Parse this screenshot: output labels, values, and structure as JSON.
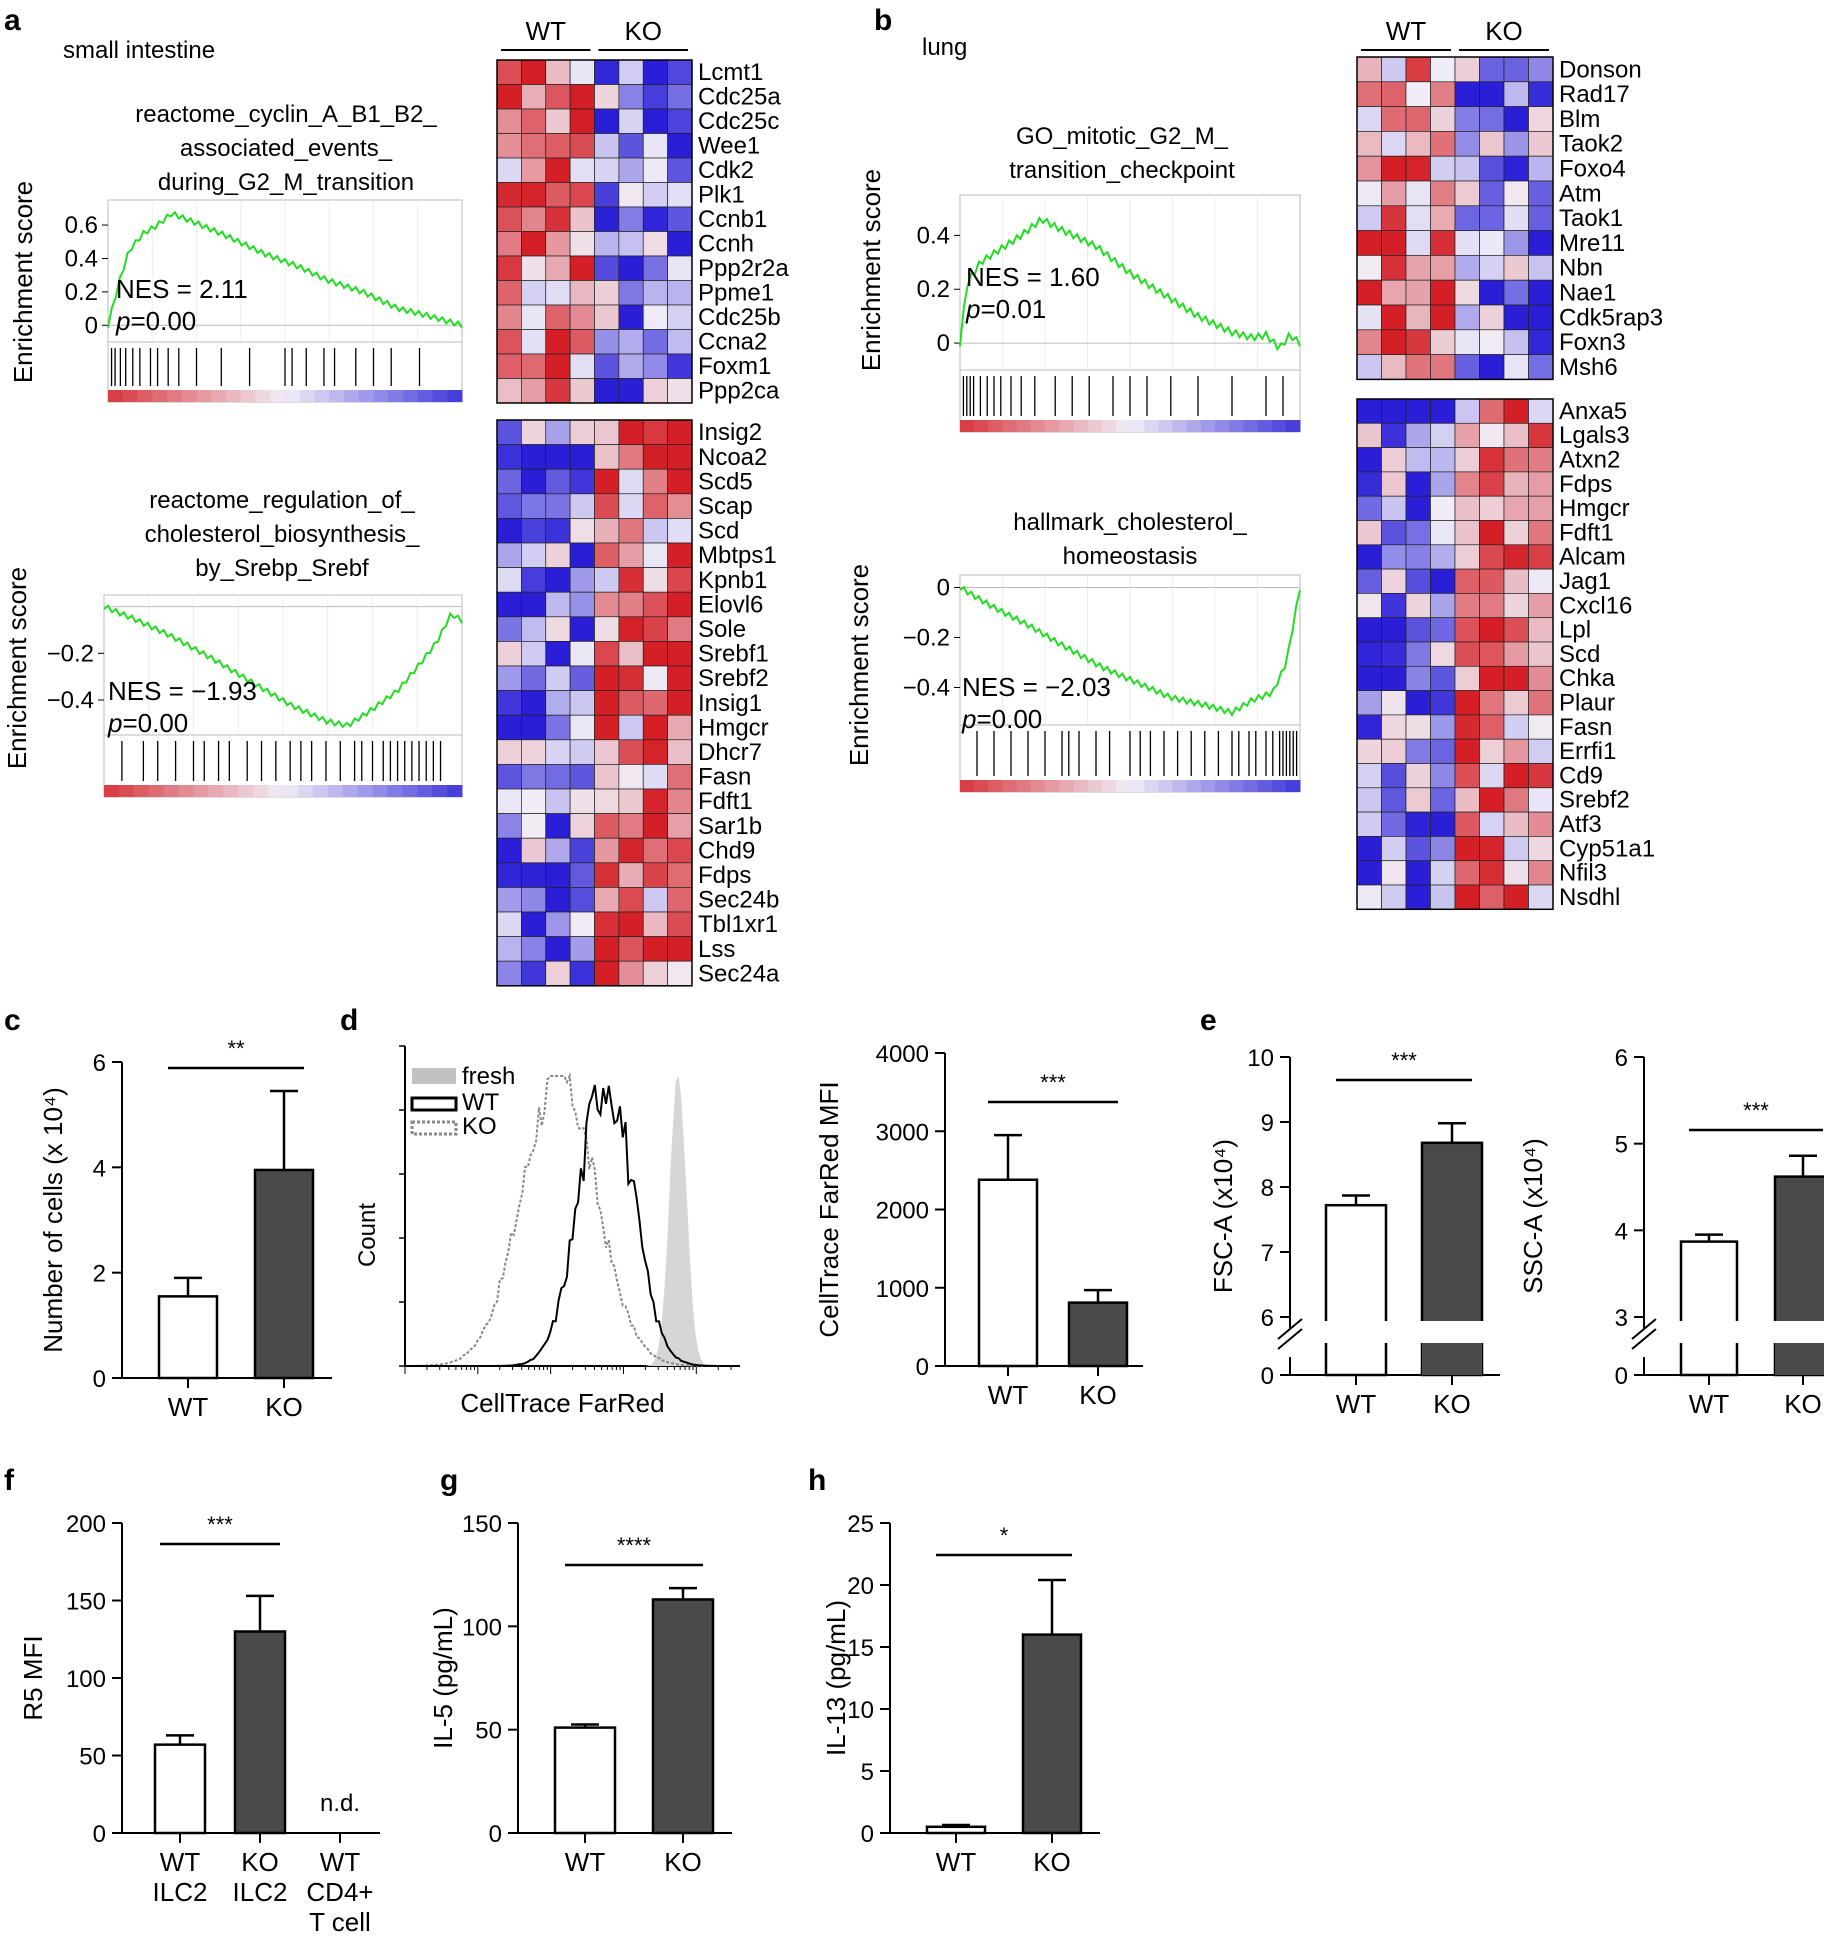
{
  "panel_letters": [
    "a",
    "b",
    "c",
    "d",
    "e",
    "f",
    "g",
    "h"
  ],
  "colors": {
    "gsea_line": "#22dd22",
    "heat_high": "#d41f26",
    "heat_low": "#2a1fd6",
    "wt_bar": "#ffffff",
    "ko_bar": "#4a4a4a",
    "fresh_fill": "#d6d6d6"
  },
  "chart_data": [
    {
      "id": "a",
      "type": "heatmap-gsea",
      "tissue": "small intestine",
      "groups": [
        "WT",
        "KO"
      ],
      "gsea": [
        {
          "title": [
            "reactome_cyclin_A_B1_B2_",
            "associated_events_",
            "during_G2_M_transition"
          ],
          "ylabel": "Enrichment score",
          "ylim": [
            -0.1,
            0.75
          ],
          "yticks": [
            0,
            0.2,
            0.4,
            0.6
          ],
          "ytick_labels": [
            "0",
            "0.2",
            "0.4",
            "0.6"
          ],
          "nes_text": "NES = 2.11",
          "p_label": "p",
          "p_value": "=0.00",
          "curve": [
            [
              0,
              0
            ],
            [
              0.03,
              0.25
            ],
            [
              0.06,
              0.45
            ],
            [
              0.1,
              0.55
            ],
            [
              0.14,
              0.6
            ],
            [
              0.18,
              0.67
            ],
            [
              0.24,
              0.62
            ],
            [
              0.34,
              0.53
            ],
            [
              0.44,
              0.43
            ],
            [
              0.54,
              0.35
            ],
            [
              0.62,
              0.27
            ],
            [
              0.72,
              0.2
            ],
            [
              0.82,
              0.1
            ],
            [
              0.9,
              0.06
            ],
            [
              1,
              0
            ]
          ],
          "hits": [
            0.01,
            0.02,
            0.035,
            0.05,
            0.07,
            0.09,
            0.12,
            0.14,
            0.17,
            0.2,
            0.25,
            0.32,
            0.4,
            0.5,
            0.52,
            0.56,
            0.61,
            0.64,
            0.7,
            0.75,
            0.8,
            0.88
          ]
        },
        {
          "title": [
            "reactome_regulation_of_",
            "cholesterol_biosynthesis_",
            "by_Srebp_Srebf"
          ],
          "ylabel": "Enrichment score",
          "ylim": [
            -0.55,
            0.05
          ],
          "yticks": [
            -0.2,
            -0.4
          ],
          "ytick_labels": [
            "−0.2",
            "−0.4"
          ],
          "nes_text": "NES = −1.93",
          "p_label": "p",
          "p_value": "=0.00",
          "curve": [
            [
              0,
              0
            ],
            [
              0.08,
              -0.05
            ],
            [
              0.18,
              -0.12
            ],
            [
              0.3,
              -0.22
            ],
            [
              0.42,
              -0.33
            ],
            [
              0.52,
              -0.42
            ],
            [
              0.62,
              -0.49
            ],
            [
              0.68,
              -0.51
            ],
            [
              0.74,
              -0.45
            ],
            [
              0.82,
              -0.36
            ],
            [
              0.88,
              -0.25
            ],
            [
              0.93,
              -0.15
            ],
            [
              0.97,
              -0.03
            ],
            [
              1,
              -0.06
            ]
          ],
          "hits": [
            0.05,
            0.11,
            0.15,
            0.2,
            0.25,
            0.28,
            0.32,
            0.35,
            0.4,
            0.44,
            0.48,
            0.52,
            0.55,
            0.58,
            0.62,
            0.66,
            0.7,
            0.72,
            0.75,
            0.78,
            0.8,
            0.82,
            0.84,
            0.86,
            0.88,
            0.9,
            0.92,
            0.94
          ]
        }
      ],
      "heatmap_genes_top": [
        "Lcmt1",
        "Cdc25a",
        "Cdc25c",
        "Wee1",
        "Cdk2",
        "Plk1",
        "Ccnb1",
        "Ccnh",
        "Ppp2r2a",
        "Ppme1",
        "Cdc25b",
        "Ccna2",
        "Foxm1",
        "Ppp2ca"
      ],
      "heatmap_genes_bottom": [
        "Insig2",
        "Ncoa2",
        "Scd5",
        "Scap",
        "Scd",
        "Mbtps1",
        "Kpnb1",
        "Elovl6",
        "Sole",
        "Srebf1",
        "Srebf2",
        "Insig1",
        "Hmgcr",
        "Dhcr7",
        "Fasn",
        "Fdft1",
        "Sar1b",
        "Chd9",
        "Fdps",
        "Sec24b",
        "Tbl1xr1",
        "Lss",
        "Sec24a"
      ]
    },
    {
      "id": "b",
      "type": "heatmap-gsea",
      "tissue": "lung",
      "groups": [
        "WT",
        "KO"
      ],
      "gsea": [
        {
          "title": [
            "GO_mitotic_G2_M_",
            "transition_checkpoint"
          ],
          "ylabel": "Enrichment score",
          "ylim": [
            -0.1,
            0.55
          ],
          "yticks": [
            0,
            0.2,
            0.4
          ],
          "ytick_labels": [
            "0",
            "0.2",
            "0.4"
          ],
          "nes_text": "NES = 1.60",
          "p_label": "p",
          "p_value": "=0.01",
          "curve": [
            [
              0,
              0
            ],
            [
              0.02,
              0.22
            ],
            [
              0.06,
              0.3
            ],
            [
              0.12,
              0.35
            ],
            [
              0.18,
              0.4
            ],
            [
              0.24,
              0.46
            ],
            [
              0.3,
              0.42
            ],
            [
              0.4,
              0.36
            ],
            [
              0.5,
              0.26
            ],
            [
              0.6,
              0.18
            ],
            [
              0.7,
              0.1
            ],
            [
              0.8,
              0.04
            ],
            [
              0.86,
              0.02
            ],
            [
              0.9,
              0.03
            ],
            [
              0.94,
              -0.02
            ],
            [
              0.97,
              0.03
            ],
            [
              1,
              0
            ]
          ],
          "hits": [
            0.01,
            0.02,
            0.03,
            0.04,
            0.06,
            0.08,
            0.1,
            0.12,
            0.15,
            0.18,
            0.22,
            0.28,
            0.33,
            0.38,
            0.45,
            0.5,
            0.55,
            0.62,
            0.7,
            0.8,
            0.9,
            0.95
          ]
        },
        {
          "title": [
            "hallmark_cholesterol_",
            "homeostasis"
          ],
          "ylabel": "Enrichment score",
          "ylim": [
            -0.55,
            0.05
          ],
          "yticks": [
            0,
            -0.2,
            -0.4
          ],
          "ytick_labels": [
            "0",
            "−0.2",
            "−0.4"
          ],
          "nes_text": "NES = −2.03",
          "p_label": "p",
          "p_value": "=0.00",
          "curve": [
            [
              0,
              0
            ],
            [
              0.1,
              -0.08
            ],
            [
              0.2,
              -0.15
            ],
            [
              0.3,
              -0.23
            ],
            [
              0.42,
              -0.32
            ],
            [
              0.52,
              -0.38
            ],
            [
              0.62,
              -0.44
            ],
            [
              0.72,
              -0.47
            ],
            [
              0.8,
              -0.5
            ],
            [
              0.86,
              -0.45
            ],
            [
              0.92,
              -0.42
            ],
            [
              0.96,
              -0.3
            ],
            [
              0.98,
              -0.15
            ],
            [
              1,
              0
            ]
          ],
          "hits": [
            0.05,
            0.1,
            0.15,
            0.2,
            0.25,
            0.3,
            0.32,
            0.35,
            0.4,
            0.44,
            0.5,
            0.53,
            0.56,
            0.6,
            0.64,
            0.68,
            0.72,
            0.76,
            0.8,
            0.82,
            0.85,
            0.87,
            0.9,
            0.92,
            0.94,
            0.95,
            0.96,
            0.97,
            0.98,
            0.99
          ]
        }
      ],
      "heatmap_genes_top": [
        "Donson",
        "Rad17",
        "Blm",
        "Taok2",
        "Foxo4",
        "Atm",
        "Taok1",
        "Mre11",
        "Nbn",
        "Nae1",
        "Cdk5rap3",
        "Foxn3",
        "Msh6"
      ],
      "heatmap_genes_bottom": [
        "Anxa5",
        "Lgals3",
        "Atxn2",
        "Fdps",
        "Hmgcr",
        "Fdft1",
        "Alcam",
        "Jag1",
        "Cxcl16",
        "Lpl",
        "Scd",
        "Chka",
        "Plaur",
        "Fasn",
        "Errfi1",
        "Cd9",
        "Srebf2",
        "Atf3",
        "Cyp51a1",
        "Nfil3",
        "Nsdhl"
      ]
    },
    {
      "id": "c",
      "type": "bar",
      "categories": [
        "WT",
        "KO"
      ],
      "values": [
        1.55,
        3.95
      ],
      "errors": [
        0.35,
        1.5
      ],
      "ylabel": "Number of cells (x 10⁴)",
      "ylim": [
        0,
        6
      ],
      "yticks": [
        0,
        2,
        4,
        6
      ],
      "significance": "**"
    },
    {
      "id": "d-hist",
      "type": "histogram",
      "xlabel": "CellTrace FarRed",
      "ylabel": "Count",
      "legend": [
        "fresh",
        "WT",
        "KO"
      ]
    },
    {
      "id": "d-bar",
      "type": "bar",
      "categories": [
        "WT",
        "KO"
      ],
      "values": [
        2380,
        810
      ],
      "errors": [
        570,
        160
      ],
      "ylabel": "CellTrace FarRed MFI",
      "ylim": [
        0,
        4000
      ],
      "yticks": [
        0,
        1000,
        2000,
        3000,
        4000
      ],
      "significance": "***"
    },
    {
      "id": "e-fsc",
      "type": "bar",
      "categories": [
        "WT",
        "KO"
      ],
      "values": [
        7.72,
        8.68
      ],
      "errors": [
        0.15,
        0.3
      ],
      "ylabel": "FSC-A (x10⁴)",
      "ylim": [
        6,
        10
      ],
      "yticks": [
        6,
        7,
        8,
        9,
        10
      ],
      "axis_break_at": 0,
      "significance": "***"
    },
    {
      "id": "e-ssc",
      "type": "bar",
      "categories": [
        "WT",
        "KO"
      ],
      "values": [
        3.87,
        4.62
      ],
      "errors": [
        0.08,
        0.24
      ],
      "ylabel": "SSC-A (x10⁴)",
      "ylim": [
        3,
        6
      ],
      "yticks": [
        3,
        4,
        5,
        6
      ],
      "axis_break_at": 0,
      "significance": "***"
    },
    {
      "id": "f",
      "type": "bar",
      "categories": [
        [
          "WT",
          "ILC2"
        ],
        [
          "KO",
          "ILC2"
        ],
        [
          "WT",
          "CD4+",
          "T cell"
        ]
      ],
      "values": [
        57,
        130,
        null
      ],
      "errors": [
        6,
        23,
        null
      ],
      "ylabel": "R5 MFI",
      "ylim": [
        0,
        200
      ],
      "yticks": [
        0,
        50,
        100,
        150,
        200
      ],
      "significance": "***",
      "not_detected_label": "n.d."
    },
    {
      "id": "g",
      "type": "bar",
      "categories": [
        "WT",
        "KO"
      ],
      "values": [
        51,
        113
      ],
      "errors": [
        1.5,
        5.5
      ],
      "ylabel": "IL-5 (pg/mL)",
      "ylim": [
        0,
        150
      ],
      "yticks": [
        0,
        50,
        100,
        150
      ],
      "significance": "****"
    },
    {
      "id": "h",
      "type": "bar",
      "categories": [
        "WT",
        "KO"
      ],
      "values": [
        0.5,
        16
      ],
      "errors": [
        0.15,
        4.4
      ],
      "ylabel": "IL-13 (pg/mL)",
      "ylim": [
        0,
        25
      ],
      "yticks": [
        0,
        5,
        10,
        15,
        20,
        25
      ],
      "significance": "*"
    }
  ]
}
